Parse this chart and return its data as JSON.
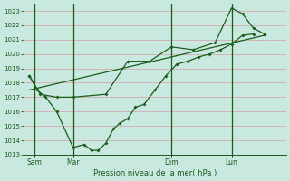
{
  "xlabel": "Pression niveau de la mer( hPa )",
  "ylim": [
    1013,
    1023.5
  ],
  "yticks": [
    1013,
    1014,
    1015,
    1016,
    1017,
    1018,
    1019,
    1020,
    1021,
    1022,
    1023
  ],
  "xlim": [
    0,
    24
  ],
  "day_positions": [
    1.0,
    4.5,
    13.5,
    19.0
  ],
  "day_labels": [
    "Sam",
    "Mar",
    "Dim",
    "Lun"
  ],
  "bg_color": "#c8e8e0",
  "line_color": "#1a5c1a",
  "grid_color": "#d4a0a0",
  "series1_x": [
    0.5,
    1.2,
    2.0,
    3.0,
    4.5,
    5.5,
    6.2,
    6.8,
    7.5,
    8.2,
    8.8,
    9.5,
    10.2,
    11.0,
    12.0,
    13.0,
    14.0,
    15.0,
    16.0,
    17.0,
    18.0,
    19.0,
    20.0,
    21.0
  ],
  "series1_y": [
    1018.5,
    1017.5,
    1017.0,
    1016.0,
    1013.5,
    1013.7,
    1013.3,
    1013.3,
    1013.8,
    1014.8,
    1015.2,
    1015.5,
    1016.3,
    1016.5,
    1017.5,
    1018.5,
    1019.3,
    1019.5,
    1019.8,
    1020.0,
    1020.3,
    1020.7,
    1021.3,
    1021.4
  ],
  "series2_x": [
    0.5,
    1.5,
    3.0,
    4.5,
    7.5,
    9.5,
    11.5,
    13.5,
    15.5,
    17.5,
    19.0,
    20.0,
    21.0,
    22.0
  ],
  "series2_y": [
    1018.5,
    1017.2,
    1017.0,
    1017.0,
    1017.2,
    1019.5,
    1019.5,
    1020.5,
    1020.3,
    1020.8,
    1023.2,
    1022.8,
    1021.8,
    1021.4
  ],
  "trend_x": [
    0.5,
    22.0
  ],
  "trend_y": [
    1017.5,
    1021.3
  ]
}
